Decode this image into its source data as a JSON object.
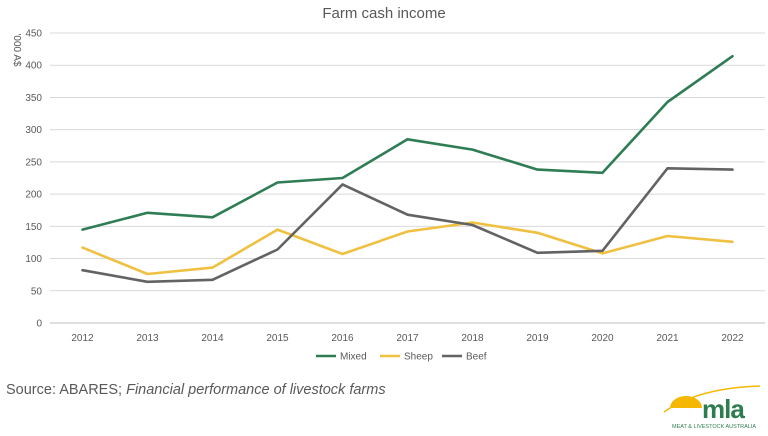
{
  "chart_data": {
    "type": "line",
    "title": "Farm cash income",
    "ylabel": "'000 A$",
    "xlabel": "",
    "categories": [
      "2012",
      "2013",
      "2014",
      "2015",
      "2016",
      "2017",
      "2018",
      "2019",
      "2020",
      "2021",
      "2022"
    ],
    "ylim": [
      0,
      450
    ],
    "yticks": [
      0,
      50,
      100,
      150,
      200,
      250,
      300,
      350,
      400,
      450
    ],
    "grid": true,
    "legend_position": "bottom",
    "series": [
      {
        "name": "Mixed",
        "color": "#2e7d55",
        "values": [
          145,
          171,
          164,
          218,
          225,
          285,
          269,
          238,
          233,
          343,
          414
        ]
      },
      {
        "name": "Sheep",
        "color": "#f0c040",
        "values": [
          117,
          76,
          86,
          145,
          107,
          142,
          156,
          140,
          108,
          135,
          126
        ]
      },
      {
        "name": "Beef",
        "color": "#636363",
        "values": [
          82,
          64,
          67,
          114,
          215,
          168,
          152,
          109,
          112,
          240,
          238
        ]
      }
    ]
  },
  "source": {
    "prefix": "Source: ABARES; ",
    "italic": "Financial performance of livestock farms"
  },
  "logo": {
    "text": "mla",
    "subtext": "MEAT & LIVESTOCK AUSTRALIA",
    "yellow": "#f5b800",
    "green": "#2e7d4f"
  }
}
